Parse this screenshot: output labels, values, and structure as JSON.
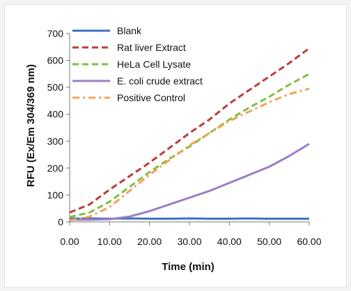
{
  "chart_data": {
    "type": "line",
    "xlabel": "Time (min)",
    "ylabel": "RFU (Ex/Em 304/369 nm)",
    "xlim": [
      0,
      60
    ],
    "ylim": [
      0,
      700
    ],
    "xticks": [
      "0.00",
      "10.00",
      "20.00",
      "30.00",
      "40.00",
      "50.00",
      "60.00"
    ],
    "yticks": [
      "0",
      "100",
      "200",
      "300",
      "400",
      "500",
      "600",
      "700"
    ],
    "legend_position": "top-left",
    "grid": false,
    "series": [
      {
        "name": "Blank",
        "color": "#3b73c4",
        "dash": "solid",
        "x": [
          0,
          5,
          10,
          15,
          20,
          25,
          30,
          35,
          40,
          45,
          50,
          55,
          60
        ],
        "y": [
          12,
          13,
          12,
          13,
          12,
          12,
          13,
          12,
          12,
          13,
          12,
          12,
          12
        ]
      },
      {
        "name": "Rat liver Extract",
        "color": "#c0393b",
        "dash": "dash",
        "x": [
          0,
          5,
          10,
          15,
          20,
          25,
          30,
          35,
          40,
          45,
          50,
          55,
          60
        ],
        "y": [
          35,
          65,
          120,
          170,
          220,
          275,
          330,
          380,
          440,
          490,
          540,
          590,
          645
        ]
      },
      {
        "name": "HeLa Cell Lysate",
        "color": "#7fbf3f",
        "dash": "dash",
        "x": [
          0,
          5,
          10,
          15,
          20,
          25,
          30,
          35,
          40,
          45,
          50,
          55,
          60
        ],
        "y": [
          18,
          35,
          75,
          130,
          185,
          235,
          280,
          330,
          380,
          425,
          465,
          510,
          550
        ]
      },
      {
        "name": "E. coli crude extract",
        "color": "#9b7fc4",
        "dash": "solid",
        "x": [
          0,
          5,
          10,
          15,
          20,
          25,
          30,
          35,
          40,
          45,
          50,
          55,
          60
        ],
        "y": [
          8,
          8,
          10,
          20,
          40,
          65,
          90,
          115,
          145,
          175,
          205,
          245,
          290
        ]
      },
      {
        "name": "Positive Control",
        "color": "#f4a256",
        "dash": "dashdot",
        "x": [
          0,
          5,
          10,
          15,
          20,
          25,
          30,
          35,
          40,
          45,
          50,
          55,
          60
        ],
        "y": [
          5,
          20,
          55,
          115,
          175,
          230,
          285,
          330,
          375,
          410,
          445,
          475,
          495
        ]
      }
    ]
  }
}
